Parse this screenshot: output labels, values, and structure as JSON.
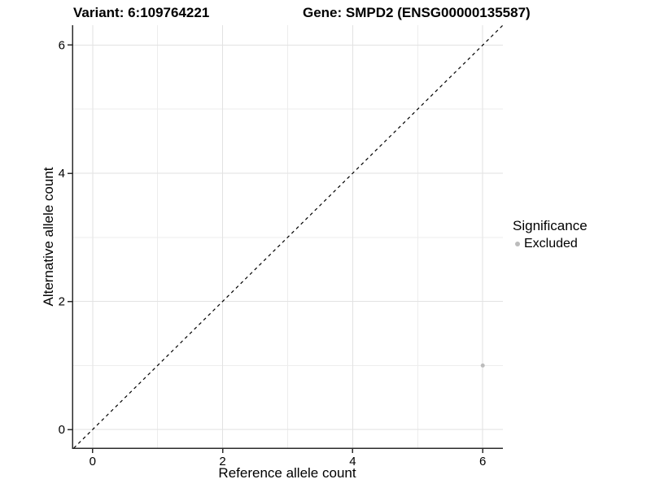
{
  "titles": {
    "variant": "Variant: 6:109764221",
    "gene": "Gene: SMPD2 (ENSG00000135587)"
  },
  "legend": {
    "title": "Significance",
    "items": [
      {
        "label": "Excluded",
        "color": "#bcbcbc"
      }
    ]
  },
  "chart_data": {
    "type": "scatter",
    "title_left": "Variant: 6:109764221",
    "title_right": "Gene: SMPD2 (ENSG00000135587)",
    "xlabel": "Reference allele count",
    "ylabel": "Alternative allele count",
    "xlim": [
      -0.31,
      6.31
    ],
    "ylim": [
      -0.29,
      6.31
    ],
    "x_ticks": [
      0,
      2,
      4,
      6
    ],
    "y_ticks": [
      0,
      2,
      4,
      6
    ],
    "x_minor_gridlines": [
      1,
      3,
      5
    ],
    "y_minor_gridlines": [
      1,
      3,
      5
    ],
    "grid": true,
    "legend_position": "right",
    "identity_line": {
      "type": "abline",
      "slope": 1,
      "intercept": 0,
      "style": "dashed",
      "color": "#000000"
    },
    "series": [
      {
        "name": "Excluded",
        "color": "#bcbcbc",
        "points": [
          {
            "x": 6,
            "y": 1
          }
        ]
      }
    ]
  },
  "style_colors": {
    "major_gridline": "#e2e2e2",
    "minor_gridline": "#ededed",
    "axis_line": "#2b2b2b",
    "tick_label": "#000000"
  }
}
